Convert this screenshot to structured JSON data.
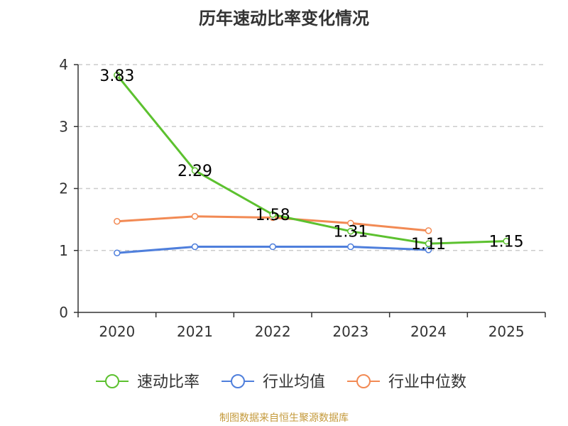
{
  "chart_data": {
    "type": "line",
    "title": "历年速动比率变化情况",
    "categories": [
      "2020",
      "2021",
      "2022",
      "2023",
      "2024",
      "2025"
    ],
    "ylim": [
      0,
      4
    ],
    "yticks": [
      0,
      1,
      2,
      3,
      4
    ],
    "grid": true,
    "legend_position": "bottom",
    "series": [
      {
        "name": "速动比率",
        "color": "#5cc12f",
        "values": [
          3.83,
          2.29,
          1.58,
          1.31,
          1.11,
          1.15
        ],
        "labels": [
          "3.83",
          "2.29",
          "1.58",
          "1.31",
          "1.11",
          "1.15"
        ]
      },
      {
        "name": "行业均值",
        "color": "#4f7fdc",
        "values": [
          0.96,
          1.06,
          1.06,
          1.06,
          1.01,
          null
        ]
      },
      {
        "name": "行业中位数",
        "color": "#f28a54",
        "values": [
          1.47,
          1.55,
          1.53,
          1.44,
          1.32,
          null
        ]
      }
    ],
    "source": "制图数据来自恒生聚源数据库"
  }
}
